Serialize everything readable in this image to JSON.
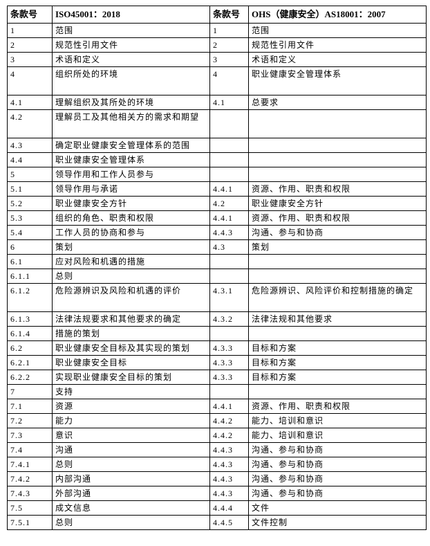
{
  "table": {
    "header": [
      "条款号",
      "ISO45001：2018",
      "条款号",
      "OHS（健康安全）AS18001：2007"
    ],
    "rows": [
      [
        "1",
        "范围",
        "1",
        "范围"
      ],
      [
        "2",
        "规范性引用文件",
        "2",
        "规范性引用文件"
      ],
      [
        "3",
        "术语和定义",
        "3",
        "术语和定义"
      ],
      [
        "4",
        "组织所处的环境",
        "4",
        "职业健康安全管理体系"
      ],
      [
        "4.1",
        "理解组织及其所处的环境",
        "4.1",
        "总要求"
      ],
      [
        "4.2",
        "理解员工及其他相关方的需求和期望",
        null,
        null
      ],
      [
        "4.3",
        "确定职业健康安全管理体系的范围",
        null,
        null
      ],
      [
        "4.4",
        "职业健康安全管理体系",
        null,
        null
      ],
      [
        "5",
        "领导作用和工作人员参与",
        null,
        null
      ],
      [
        "5.1",
        "领导作用与承诺",
        "4.4.1",
        "资源、作用、职责和权限"
      ],
      [
        "5.2",
        "职业健康安全方针",
        "4.2",
        "职业健康安全方针"
      ],
      [
        "5.3",
        "组织的角色、职责和权限",
        "4.4.1",
        "资源、作用、职责和权限"
      ],
      [
        "5.4",
        "工作人员的协商和参与",
        "4.4.3",
        "沟通、参与和协商"
      ],
      [
        "6",
        "策划",
        "4.3",
        "策划"
      ],
      [
        "6.1",
        "应对风险和机遇的措施",
        null,
        null
      ],
      [
        "6.1.1",
        "总则",
        null,
        null
      ],
      [
        "6.1.2",
        "危险源辨识及风险和机遇的评价",
        "4.3.1",
        "危险源辨识、风险评价和控制措施的确定"
      ],
      [
        "6.1.3",
        "法律法规要求和其他要求的确定",
        "4.3.2",
        "法律法规和其他要求"
      ],
      [
        "6.1.4",
        "措施的策划",
        null,
        null
      ],
      [
        "6.2",
        "职业健康安全目标及其实现的策划",
        "4.3.3",
        "目标和方案"
      ],
      [
        "6.2.1",
        "职业健康安全目标",
        "4.3.3",
        "目标和方案"
      ],
      [
        "6.2.2",
        "实现职业健康安全目标的策划",
        "4.3.3",
        "目标和方案"
      ],
      [
        "7",
        "支持",
        null,
        null
      ],
      [
        "7.1",
        "资源",
        "4.4.1",
        "资源、作用、职责和权限"
      ],
      [
        "7.2",
        "能力",
        "4.4.2",
        "能力、培训和意识"
      ],
      [
        "7.3",
        "意识",
        "4.4.2",
        "能力、培训和意识"
      ],
      [
        "7.4",
        "沟通",
        "4.4.3",
        "沟通、参与和协商"
      ],
      [
        "7.4.1",
        "总则",
        "4.4.3",
        "沟通、参与和协商"
      ],
      [
        "7.4.2",
        "内部沟通",
        "4.4.3",
        "沟通、参与和协商"
      ],
      [
        "7.4.3",
        "外部沟通",
        "4.4.3",
        "沟通、参与和协商"
      ],
      [
        "7.5",
        "成文信息",
        "4.4.4",
        "文件"
      ],
      [
        "7.5.1",
        "总则",
        "4.4.5",
        "文件控制"
      ]
    ]
  }
}
